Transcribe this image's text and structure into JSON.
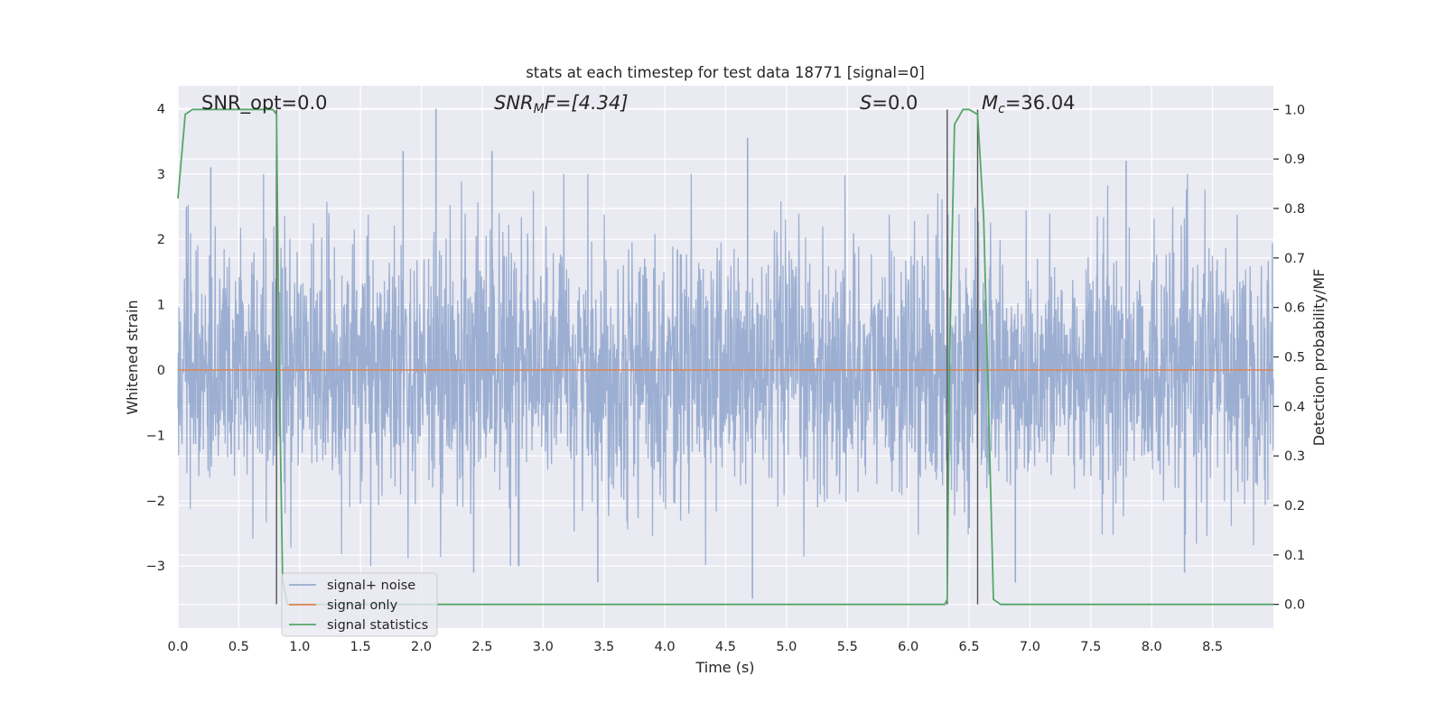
{
  "chart_data": {
    "type": "line",
    "title": "stats at each timestep for test data 18771 [signal=0]",
    "xlabel": "Time (s)",
    "ylabel": "Whitened strain",
    "ylabel_right": "Detection probability/MF",
    "xlim": [
      0.0,
      9.0
    ],
    "ylim": [
      -3.95,
      4.35
    ],
    "ylim_right": [
      -0.048,
      1.048
    ],
    "x_ticks": [
      "0.0",
      "0.5",
      "1.0",
      "1.5",
      "2.0",
      "2.5",
      "3.0",
      "3.5",
      "4.0",
      "4.5",
      "5.0",
      "5.5",
      "6.0",
      "6.5",
      "7.0",
      "7.5",
      "8.0",
      "8.5"
    ],
    "x_tick_values": [
      0.0,
      0.5,
      1.0,
      1.5,
      2.0,
      2.5,
      3.0,
      3.5,
      4.0,
      4.5,
      5.0,
      5.5,
      6.0,
      6.5,
      7.0,
      7.5,
      8.0,
      8.5
    ],
    "y_ticks": [
      "4",
      "3",
      "2",
      "1",
      "0",
      "−1",
      "−2",
      "−3"
    ],
    "y_tick_values": [
      4,
      3,
      2,
      1,
      0,
      -1,
      -2,
      -3
    ],
    "y_right_ticks": [
      "1.0",
      "0.9",
      "0.8",
      "0.7",
      "0.6",
      "0.5",
      "0.4",
      "0.3",
      "0.2",
      "0.1",
      "0.0"
    ],
    "y_right_tick_values": [
      1.0,
      0.9,
      0.8,
      0.7,
      0.6,
      0.5,
      0.4,
      0.3,
      0.2,
      0.1,
      0.0
    ],
    "grid": true,
    "legend_position": "lower-left",
    "annotations": {
      "snr_opt": "SNR_opt=0.0",
      "snr_mf_main": "SNR",
      "snr_mf_sub": "M",
      "snr_mf_rest": "F=[4.34]",
      "s_main": "S",
      "s_rest": "=0.0",
      "mc_main": "M",
      "mc_sub": "c",
      "mc_rest": "=36.04"
    },
    "vertical_lines_x": [
      0.81,
      6.32,
      6.57
    ],
    "series": [
      {
        "name": "signal+ noise",
        "color": "#98acd0",
        "axis": "left",
        "description_values": "whitened noisy strain, approx. N(0,1), range about -3.5 to 4.0",
        "approx_extremes": [
          {
            "x": 0.07,
            "y": 2.5
          },
          {
            "x": 0.27,
            "y": 3.1
          },
          {
            "x": 1.85,
            "y": 3.35
          },
          {
            "x": 2.12,
            "y": 4.0
          },
          {
            "x": 2.58,
            "y": 3.35
          },
          {
            "x": 4.68,
            "y": 3.55
          },
          {
            "x": 7.79,
            "y": 3.2
          },
          {
            "x": 3.45,
            "y": -3.25
          },
          {
            "x": 4.72,
            "y": -3.5
          },
          {
            "x": 2.43,
            "y": -3.1
          },
          {
            "x": 6.88,
            "y": -3.25
          },
          {
            "x": 8.27,
            "y": -3.1
          }
        ]
      },
      {
        "name": "signal only",
        "color": "#dd8452",
        "axis": "left",
        "x": [
          0.0,
          9.0
        ],
        "y": [
          0.0,
          0.0
        ]
      },
      {
        "name": "signal statistics",
        "color": "#55a868",
        "axis": "right",
        "x": [
          0.0,
          0.06,
          0.12,
          0.2,
          0.78,
          0.81,
          0.83,
          0.86,
          0.9,
          1.5,
          2.5,
          3.5,
          4.5,
          5.5,
          6.3,
          6.32,
          6.34,
          6.38,
          6.45,
          6.5,
          6.57,
          6.62,
          6.7,
          6.76,
          7.5,
          8.5,
          9.0
        ],
        "y": [
          0.82,
          0.99,
          1.0,
          1.0,
          1.0,
          0.99,
          0.5,
          0.05,
          0.0,
          0.0,
          0.0,
          0.0,
          0.0,
          0.0,
          0.0,
          0.01,
          0.5,
          0.97,
          1.0,
          1.0,
          0.99,
          0.78,
          0.01,
          0.0,
          0.0,
          0.0,
          0.0
        ]
      }
    ]
  }
}
